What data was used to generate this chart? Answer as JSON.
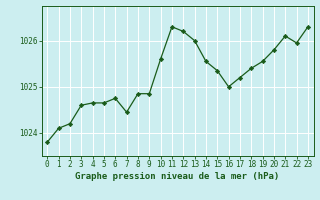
{
  "x": [
    0,
    1,
    2,
    3,
    4,
    5,
    6,
    7,
    8,
    9,
    10,
    11,
    12,
    13,
    14,
    15,
    16,
    17,
    18,
    19,
    20,
    21,
    22,
    23
  ],
  "y": [
    1023.8,
    1024.1,
    1024.2,
    1024.6,
    1024.65,
    1024.65,
    1024.75,
    1024.45,
    1024.85,
    1024.85,
    1025.6,
    1026.3,
    1026.2,
    1026.0,
    1025.55,
    1025.35,
    1025.0,
    1025.2,
    1025.4,
    1025.55,
    1025.8,
    1026.1,
    1025.95,
    1026.3
  ],
  "line_color": "#1a5c1a",
  "marker": "D",
  "marker_size": 2.2,
  "bg_color": "#cceef0",
  "grid_color": "#ffffff",
  "xlabel": "Graphe pression niveau de la mer (hPa)",
  "xlabel_color": "#1a5c1a",
  "tick_label_color": "#1a5c1a",
  "axis_label_fontsize": 6.5,
  "tick_fontsize": 5.5,
  "ylim": [
    1023.5,
    1026.75
  ],
  "yticks": [
    1024,
    1025,
    1026
  ],
  "xlim": [
    -0.5,
    23.5
  ],
  "xticks": [
    0,
    1,
    2,
    3,
    4,
    5,
    6,
    7,
    8,
    9,
    10,
    11,
    12,
    13,
    14,
    15,
    16,
    17,
    18,
    19,
    20,
    21,
    22,
    23
  ]
}
